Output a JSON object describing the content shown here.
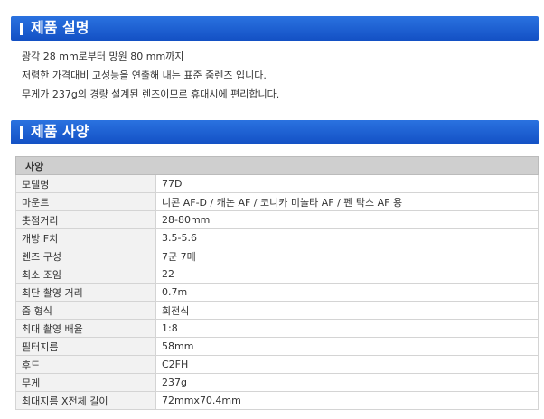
{
  "description": {
    "title": "제품 설명",
    "lines": [
      "광각 28 mm로부터 망원 80 mm까지",
      "저렴한 가격대비 고성능을 연출해 내는 표준 줌렌즈 입니다.",
      "무게가 237g의 경량 설계된 렌즈이므로 휴대시에 편리합니다."
    ]
  },
  "specs": {
    "title": "제품 사양",
    "header": "사양",
    "rows": [
      [
        "모델명",
        "77D"
      ],
      [
        "마운트",
        "니콘 AF-D / 캐논 AF / 코니카 미놀타 AF / 펜 탁스 AF 용"
      ],
      [
        "촛점거리",
        "28-80mm"
      ],
      [
        "개방 F치",
        "3.5-5.6"
      ],
      [
        "렌즈 구성",
        "7군 7매"
      ],
      [
        "최소 조임",
        "22"
      ],
      [
        "최단 촬영 거리",
        "0.7m"
      ],
      [
        "줌 형식",
        "회전식"
      ],
      [
        "최대 촬영 배율",
        "1:8"
      ],
      [
        "필터지름",
        "58mm"
      ],
      [
        "후드",
        "C2FH"
      ],
      [
        "무게",
        "237g"
      ],
      [
        "최대지름 X전체 길이",
        "72mmx70.4mm"
      ]
    ]
  }
}
